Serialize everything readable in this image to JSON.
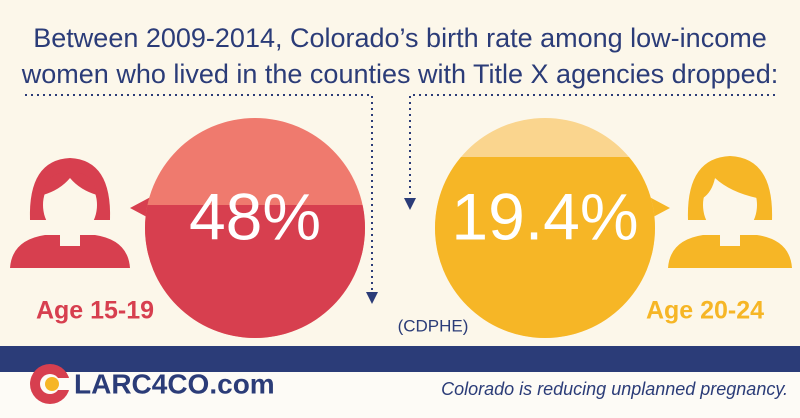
{
  "header": {
    "line1": "Between 2009-2014, Colorado’s birth rate among low-income",
    "line2": "women who lived in the counties with Title X agencies dropped:"
  },
  "left": {
    "value": "48%",
    "label": "Age 15-19"
  },
  "right": {
    "value": "19.4%",
    "label": "Age 20-24"
  },
  "source": "(CDPHE)",
  "footer": {
    "brand": "LARC4CO.com",
    "tagline": "Colorado is reducing unplanned pregnancy."
  }
}
